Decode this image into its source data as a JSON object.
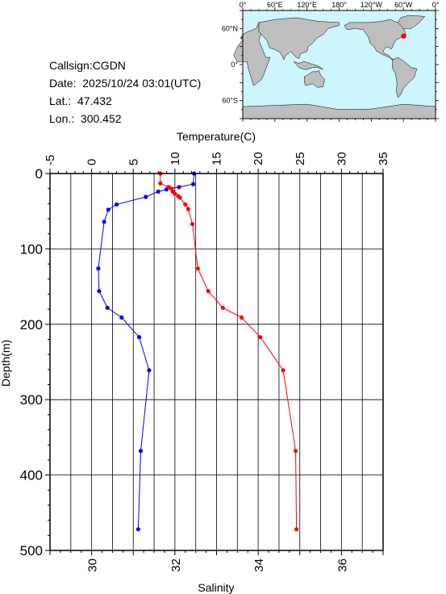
{
  "info": {
    "callsign": "Callsign:CGDN",
    "date": "Date:  2025/10/24 03:01(UTC)",
    "lat": "Lat.:  47.432",
    "lon": "Lon.:  300.452"
  },
  "map": {
    "lon_labels": [
      "0°",
      "60°E",
      "120°E",
      "180°",
      "120°W",
      "60°W",
      "0°"
    ],
    "lat_labels": [
      "60°N",
      "0°",
      "60°S"
    ],
    "ocean_color": "#cdf5fd",
    "land_color": "#bebebe",
    "station_marker_color": "#ff0000",
    "station": {
      "lon": 300.452,
      "lat": 47.432
    }
  },
  "chart_data": {
    "type": "line",
    "top_axis": {
      "label": "Temperature(C)",
      "range": [
        -5,
        35
      ],
      "ticks": [
        "-5",
        "0",
        "5",
        "10",
        "15",
        "20",
        "25",
        "30",
        "35"
      ]
    },
    "bottom_axis": {
      "label": "Salinity",
      "range": [
        29,
        37
      ],
      "ticks": [
        "30",
        "32",
        "34",
        "36"
      ]
    },
    "y_axis": {
      "label": "Depth(m)",
      "range": [
        0,
        500
      ],
      "inverted": true,
      "ticks": [
        "0",
        "100",
        "200",
        "300",
        "400",
        "500"
      ]
    },
    "grid": true,
    "series": [
      {
        "color": "#0000ff",
        "axis": "top",
        "points": [
          [
            12.3,
            0
          ],
          [
            12.2,
            14
          ],
          [
            10.5,
            18
          ],
          [
            9.0,
            21
          ],
          [
            8.0,
            24
          ],
          [
            6.5,
            31
          ],
          [
            3.0,
            41
          ],
          [
            2.0,
            48
          ],
          [
            1.5,
            64
          ],
          [
            0.8,
            126
          ],
          [
            0.9,
            156
          ],
          [
            1.9,
            178
          ],
          [
            3.6,
            191
          ],
          [
            5.7,
            217
          ],
          [
            6.9,
            261
          ],
          [
            5.9,
            368
          ],
          [
            5.6,
            472
          ]
        ]
      },
      {
        "color": "#ff0000",
        "axis": "bottom",
        "points": [
          [
            31.65,
            0
          ],
          [
            31.65,
            13
          ],
          [
            31.85,
            18
          ],
          [
            31.92,
            20
          ],
          [
            31.95,
            24
          ],
          [
            32.0,
            27
          ],
          [
            32.08,
            30
          ],
          [
            32.12,
            32
          ],
          [
            32.25,
            41
          ],
          [
            32.32,
            47
          ],
          [
            32.42,
            67
          ],
          [
            32.55,
            126
          ],
          [
            32.8,
            156
          ],
          [
            33.15,
            178
          ],
          [
            33.6,
            191
          ],
          [
            34.05,
            217
          ],
          [
            34.6,
            261
          ],
          [
            34.9,
            368
          ],
          [
            34.92,
            472
          ]
        ]
      }
    ]
  }
}
